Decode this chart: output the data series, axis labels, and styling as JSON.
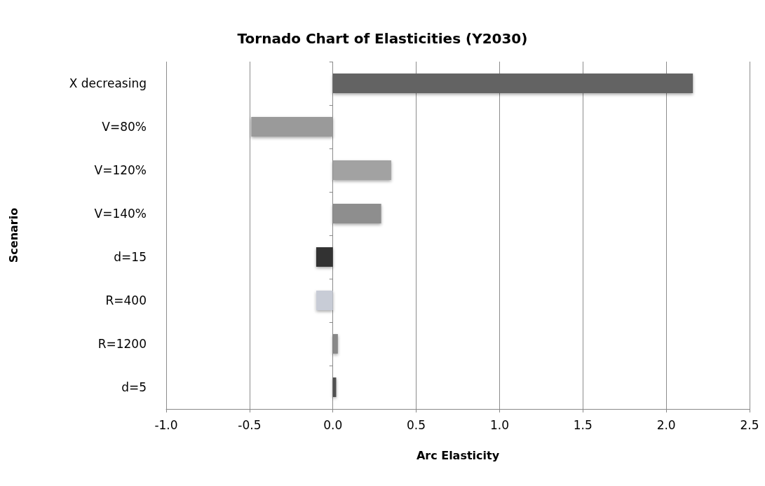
{
  "chart_data": {
    "type": "bar",
    "orientation": "horizontal",
    "title": "Tornado Chart of Elasticities (Y2030)",
    "xlabel": "Arc Elasticity",
    "ylabel": "Scenario",
    "categories": [
      "X decreasing",
      "V=80%",
      "V=120%",
      "V=140%",
      "d=15",
      "R=400",
      "R=1200",
      "d=5"
    ],
    "values": [
      2.16,
      -0.49,
      0.35,
      0.29,
      -0.1,
      -0.1,
      0.03,
      0.02
    ],
    "colors": [
      "#646464",
      "#9a9a9a",
      "#a2a2a2",
      "#8e8e8e",
      "#333333",
      "#c8ccd6",
      "#888888",
      "#505050"
    ],
    "xlim": [
      -1.0,
      2.5
    ],
    "xticks": [
      {
        "value": -1,
        "label": "-1.0"
      },
      {
        "value": -0.5,
        "label": "-0.5"
      },
      {
        "value": 0,
        "label": "0.0"
      },
      {
        "value": 0.5,
        "label": "0.5"
      },
      {
        "value": 1,
        "label": "1.0"
      },
      {
        "value": 1.5,
        "label": "1.5"
      },
      {
        "value": 2,
        "label": "2.0"
      },
      {
        "value": 2.5,
        "label": "2.5"
      }
    ],
    "grid": "x"
  }
}
